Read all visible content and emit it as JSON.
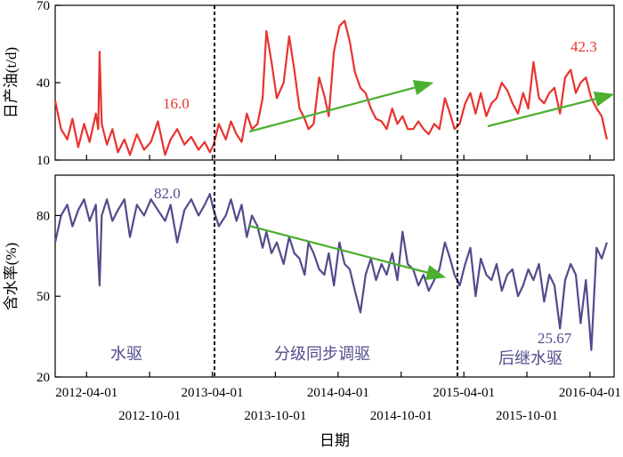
{
  "chart_data": [
    {
      "type": "line",
      "ylabel": "日产油(t/d)",
      "ylim": [
        10,
        70
      ],
      "yticks": [
        10,
        40,
        70
      ],
      "series": [
        {
          "color": "#e8332f",
          "x": [
            "2012-01-01",
            "2012-01-18",
            "2012-02-05",
            "2012-02-20",
            "2012-03-08",
            "2012-03-25",
            "2012-04-10",
            "2012-04-28",
            "2012-05-05",
            "2012-05-09",
            "2012-05-15",
            "2012-05-30",
            "2012-06-15",
            "2012-07-01",
            "2012-07-20",
            "2012-08-05",
            "2012-08-25",
            "2012-09-15",
            "2012-10-05",
            "2012-10-25",
            "2012-11-15",
            "2012-12-01",
            "2012-12-20",
            "2013-01-10",
            "2013-01-30",
            "2013-02-20",
            "2013-03-10",
            "2013-03-25",
            "2013-04-05",
            "2013-04-20",
            "2013-05-10",
            "2013-05-25",
            "2013-06-10",
            "2013-06-25",
            "2013-07-10",
            "2013-07-25",
            "2013-08-10",
            "2013-08-25",
            "2013-09-05",
            "2013-09-20",
            "2013-10-05",
            "2013-10-25",
            "2013-11-10",
            "2013-11-25",
            "2013-12-10",
            "2013-12-25",
            "2014-01-05",
            "2014-01-20",
            "2014-02-05",
            "2014-02-20",
            "2014-03-05",
            "2014-03-20",
            "2014-04-05",
            "2014-04-20",
            "2014-05-05",
            "2014-05-20",
            "2014-06-05",
            "2014-06-20",
            "2014-07-05",
            "2014-07-20",
            "2014-08-05",
            "2014-08-20",
            "2014-09-05",
            "2014-09-20",
            "2014-10-05",
            "2014-10-20",
            "2014-11-05",
            "2014-11-20",
            "2014-12-05",
            "2014-12-20",
            "2015-01-05",
            "2015-01-20",
            "2015-02-05",
            "2015-02-20",
            "2015-03-05",
            "2015-03-20",
            "2015-04-05",
            "2015-04-20",
            "2015-05-05",
            "2015-05-20",
            "2015-06-05",
            "2015-06-20",
            "2015-07-05",
            "2015-07-20",
            "2015-08-05",
            "2015-08-20",
            "2015-09-05",
            "2015-09-20",
            "2015-10-05",
            "2015-10-20",
            "2015-11-05",
            "2015-11-20",
            "2015-12-05",
            "2015-12-20",
            "2016-01-05",
            "2016-01-20",
            "2016-02-05",
            "2016-02-20",
            "2016-03-05",
            "2016-03-20",
            "2016-04-05",
            "2016-04-20",
            "2016-05-05",
            "2016-05-20"
          ],
          "y": [
            33,
            22,
            18,
            26,
            15,
            24,
            17,
            28,
            22,
            52,
            24,
            16,
            22,
            13,
            18,
            12,
            20,
            14,
            17,
            25,
            12,
            18,
            22,
            16,
            19,
            14,
            17,
            13,
            16,
            24,
            18,
            25,
            20,
            17,
            28,
            22,
            24,
            34,
            60,
            48,
            34,
            40,
            58,
            45,
            30,
            26,
            22,
            24,
            42,
            35,
            27,
            52,
            62,
            64,
            56,
            44,
            38,
            36,
            30,
            26,
            25,
            22,
            30,
            24,
            27,
            22,
            22,
            25,
            22,
            20,
            24,
            22,
            34,
            28,
            22,
            24,
            32,
            36,
            28,
            36,
            27,
            32,
            34,
            40,
            37,
            32,
            28,
            36,
            30,
            48,
            34,
            32,
            36,
            38,
            28,
            42,
            45,
            36,
            40,
            42,
            34,
            30,
            27,
            18
          ]
        }
      ],
      "annotations": [
        {
          "text": "16.0"
        },
        {
          "text": "42.3"
        }
      ]
    },
    {
      "type": "line",
      "xlabel": "日期",
      "ylabel": "含水率(%)",
      "ylim": [
        20,
        95
      ],
      "yticks": [
        20,
        50,
        80
      ],
      "xticks_row1": [
        "2012-04-01",
        "2013-04-01",
        "2014-04-01",
        "2015-04-01",
        "2016-04-01"
      ],
      "xticks_row2": [
        "2012-10-01",
        "2013-10-01",
        "2014-10-01",
        "2015-10-01"
      ],
      "series": [
        {
          "color": "#504c8c",
          "x": [
            "2012-01-01",
            "2012-01-18",
            "2012-02-05",
            "2012-02-20",
            "2012-03-08",
            "2012-03-25",
            "2012-04-10",
            "2012-04-28",
            "2012-05-05",
            "2012-05-09",
            "2012-05-15",
            "2012-05-30",
            "2012-06-15",
            "2012-07-01",
            "2012-07-20",
            "2012-08-05",
            "2012-08-25",
            "2012-09-15",
            "2012-10-05",
            "2012-10-25",
            "2012-11-15",
            "2012-12-01",
            "2012-12-20",
            "2013-01-10",
            "2013-01-30",
            "2013-02-20",
            "2013-03-10",
            "2013-03-25",
            "2013-04-05",
            "2013-04-20",
            "2013-05-10",
            "2013-05-25",
            "2013-06-10",
            "2013-06-25",
            "2013-07-10",
            "2013-07-25",
            "2013-08-10",
            "2013-08-25",
            "2013-09-05",
            "2013-09-20",
            "2013-10-05",
            "2013-10-25",
            "2013-11-10",
            "2013-11-25",
            "2013-12-10",
            "2013-12-25",
            "2014-01-05",
            "2014-01-20",
            "2014-02-05",
            "2014-02-20",
            "2014-03-05",
            "2014-03-20",
            "2014-04-05",
            "2014-04-20",
            "2014-05-05",
            "2014-05-20",
            "2014-06-05",
            "2014-06-20",
            "2014-07-05",
            "2014-07-20",
            "2014-08-05",
            "2014-08-20",
            "2014-09-05",
            "2014-09-20",
            "2014-10-05",
            "2014-10-20",
            "2014-11-05",
            "2014-11-20",
            "2014-12-05",
            "2014-12-20",
            "2015-01-05",
            "2015-01-20",
            "2015-02-05",
            "2015-02-20",
            "2015-03-05",
            "2015-03-20",
            "2015-04-05",
            "2015-04-20",
            "2015-05-05",
            "2015-05-20",
            "2015-06-05",
            "2015-06-20",
            "2015-07-05",
            "2015-07-20",
            "2015-08-05",
            "2015-08-20",
            "2015-09-05",
            "2015-09-20",
            "2015-10-05",
            "2015-10-20",
            "2015-11-05",
            "2015-11-20",
            "2015-12-05",
            "2015-12-20",
            "2016-01-05",
            "2016-01-20",
            "2016-02-05",
            "2016-02-20",
            "2016-03-05",
            "2016-03-20",
            "2016-04-05",
            "2016-04-20",
            "2016-05-05",
            "2016-05-20"
          ],
          "y": [
            70,
            80,
            84,
            76,
            82,
            86,
            78,
            84,
            64,
            54,
            80,
            86,
            78,
            82,
            86,
            72,
            84,
            80,
            86,
            82,
            78,
            84,
            70,
            82,
            86,
            80,
            84,
            88,
            82,
            76,
            80,
            86,
            78,
            84,
            72,
            80,
            76,
            68,
            74,
            66,
            70,
            62,
            72,
            66,
            64,
            58,
            70,
            66,
            60,
            58,
            66,
            54,
            70,
            62,
            60,
            52,
            44,
            58,
            64,
            56,
            62,
            58,
            66,
            56,
            74,
            62,
            60,
            54,
            58,
            52,
            56,
            60,
            70,
            64,
            58,
            54,
            62,
            68,
            50,
            64,
            58,
            56,
            62,
            52,
            58,
            60,
            50,
            54,
            60,
            56,
            62,
            48,
            58,
            54,
            38,
            56,
            62,
            58,
            40,
            56,
            30,
            68,
            64,
            70
          ]
        }
      ],
      "annotations": [
        {
          "text": "82.0"
        },
        {
          "text": "25.67"
        }
      ],
      "phase_labels": [
        "水驱",
        "分级同步调驱",
        "后继水驱"
      ]
    }
  ]
}
